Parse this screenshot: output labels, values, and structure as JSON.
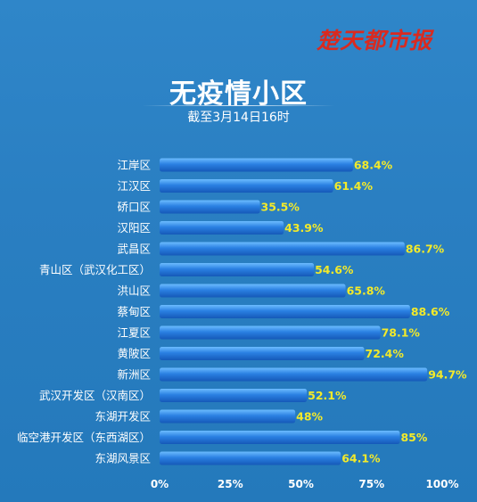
{
  "logo_text": "楚天都市报",
  "chart_data": {
    "type": "bar",
    "orientation": "horizontal",
    "title": "无疫情小区",
    "subtitle": "截至3月14日16时",
    "categories": [
      "江岸区",
      "江汉区",
      "硚口区",
      "汉阳区",
      "武昌区",
      "青山区（武汉化工区）",
      "洪山区",
      "蔡甸区",
      "江夏区",
      "黄陂区",
      "新洲区",
      "武汉开发区（汉南区）",
      "东湖开发区",
      "临空港开发区（东西湖区）",
      "东湖风景区"
    ],
    "values": [
      68.4,
      61.4,
      35.5,
      43.9,
      86.7,
      54.6,
      65.8,
      88.6,
      78.1,
      72.4,
      94.7,
      52.1,
      48,
      85,
      64.1
    ],
    "value_labels": [
      "68.4%",
      "61.4%",
      "35.5%",
      "43.9%",
      "86.7%",
      "54.6%",
      "65.8%",
      "88.6%",
      "78.1%",
      "72.4%",
      "94.7%",
      "52.1%",
      "48%",
      "85%",
      "64.1%"
    ],
    "xlim": [
      0,
      100
    ],
    "xticks": [
      0,
      25,
      50,
      75,
      100
    ],
    "xtick_labels": [
      "0%",
      "25%",
      "50%",
      "75%",
      "100%"
    ],
    "grid": false,
    "legend": "none",
    "colors": {
      "bar": "#1f6fd4",
      "bar_highlight": "#5fb2ff",
      "value_label": "#f3ea2a",
      "text": "#ffffff"
    }
  }
}
